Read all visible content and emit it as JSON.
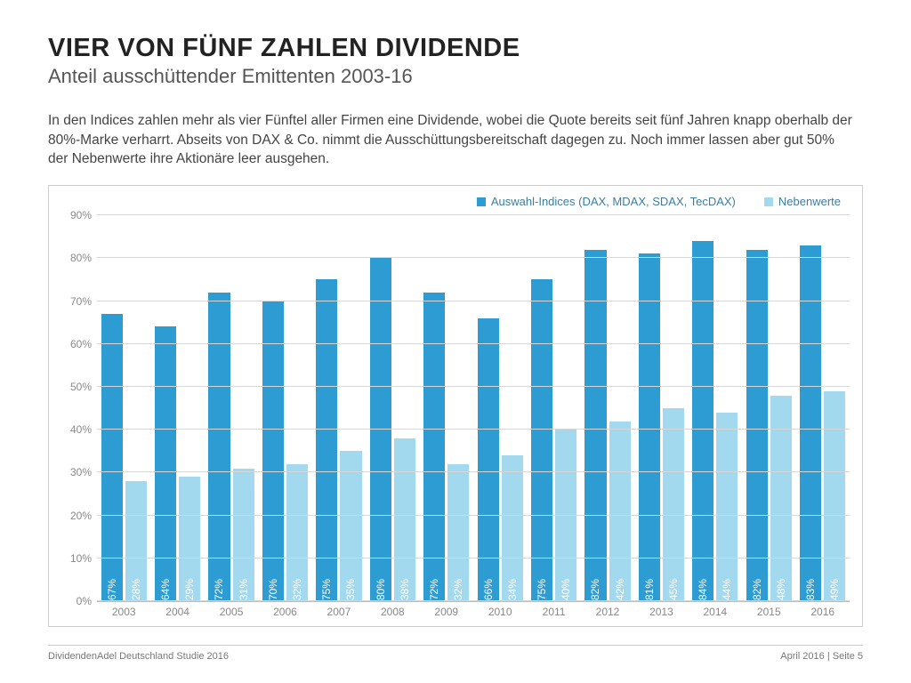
{
  "meta": {
    "title": "VIER VON FÜNF ZAHLEN DIVIDENDE",
    "subtitle": "Anteil ausschüttender Emittenten 2003-16",
    "description": "In den Indices zahlen mehr als vier Fünftel aller Firmen eine Dividende, wobei die Quote bereits seit fünf Jahren knapp oberhalb der 80%-Marke verharrt. Abseits von DAX & Co. nimmt die Ausschüttungsbereitschaft dagegen zu. Noch immer lassen aber gut 50% der Nebenwerte ihre Aktionäre leer ausgehen.",
    "footer_left": "DividendenAdel Deutschland Studie 2016",
    "footer_right": "April 2016 | Seite 5"
  },
  "chart": {
    "type": "bar",
    "ylim": [
      0,
      90
    ],
    "ytick_step": 10,
    "ytick_suffix": "%",
    "grid_color": "#d6d6d6",
    "background_color": "#ffffff",
    "axis_label_color": "#888888",
    "axis_label_fontsize": 12,
    "bar_label_fontsize": 12,
    "bar_label_rotation": -90,
    "legend": [
      {
        "label": "Auswahl-Indices (DAX, MDAX, SDAX, TecDAX)",
        "color": "#2d9cd3"
      },
      {
        "label": "Nebenwerte",
        "color": "#a3d9ef"
      }
    ],
    "categories": [
      "2003",
      "2004",
      "2005",
      "2006",
      "2007",
      "2008",
      "2009",
      "2010",
      "2011",
      "2012",
      "2013",
      "2014",
      "2015",
      "2016"
    ],
    "series": [
      {
        "name": "Auswahl-Indices",
        "color": "#2d9cd3",
        "label_color": "#ffffff",
        "values": [
          67,
          64,
          72,
          70,
          75,
          80,
          72,
          66,
          75,
          82,
          81,
          84,
          82,
          83
        ]
      },
      {
        "name": "Nebenwerte",
        "color": "#a3d9ef",
        "label_color": "#ffffff",
        "values": [
          28,
          29,
          31,
          32,
          35,
          38,
          32,
          34,
          40,
          42,
          45,
          44,
          48,
          49
        ]
      }
    ]
  }
}
